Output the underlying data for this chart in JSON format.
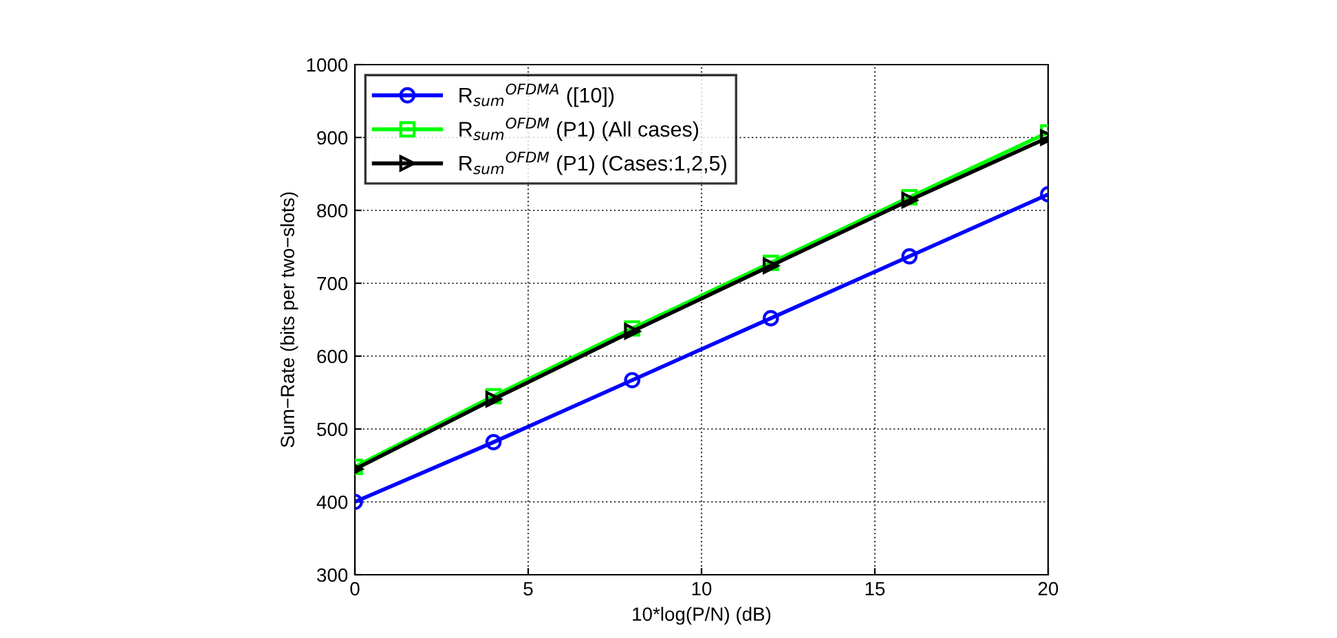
{
  "chart_data": {
    "type": "line",
    "xlabel": "10*log(P/N) (dB)",
    "ylabel": "Sum−Rate (bits per two−slots)",
    "x": [
      0,
      4,
      8,
      12,
      16,
      20
    ],
    "series": [
      {
        "name": "R$_{sum}$$^{OFDMA}$ ([10])",
        "color": "#0000ff",
        "marker": "circle",
        "values": [
          400,
          482,
          567,
          652,
          737,
          822
        ]
      },
      {
        "name": "R$_{sum}$$^{OFDM}$ (P1) (All cases)",
        "color": "#00ff00",
        "marker": "square",
        "values": [
          448,
          545,
          638,
          728,
          818,
          907
        ]
      },
      {
        "name": "R$_{sum}$$^{OFDM}$ (P1) (Cases:1,2,5)",
        "color": "#000000",
        "marker": "triangle",
        "values": [
          445,
          541,
          634,
          724,
          814,
          900
        ]
      }
    ],
    "xlim": [
      0,
      20
    ],
    "xticks": [
      0,
      5,
      10,
      15,
      20
    ],
    "ylim": [
      300,
      1000
    ],
    "yticks": [
      300,
      400,
      500,
      600,
      700,
      800,
      900,
      1000
    ],
    "grid": true,
    "legend": "top left",
    "line_style": "solid"
  }
}
